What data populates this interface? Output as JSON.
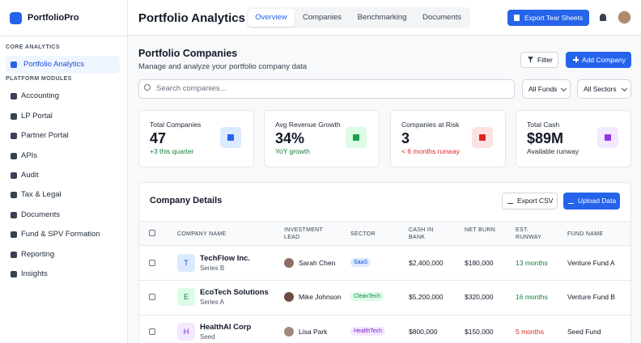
{
  "sidebar": {
    "brand": "PortfolioPro",
    "sections": [
      {
        "title": "CORE ANALYTICS",
        "items": [
          "Portfolio Analytics"
        ]
      },
      {
        "title": "PLATFORM MODULES",
        "items": [
          "Accounting",
          "LP Portal",
          "Partner Portal",
          "APIs",
          "Audit",
          "Tax & Legal",
          "Documents",
          "Fund & SPV Formation",
          "Reporting",
          "Insights"
        ]
      }
    ]
  },
  "header": {
    "title": "Portfolio Analytics",
    "tabs": [
      "Overview",
      "Companies",
      "Benchmarking",
      "Documents"
    ],
    "export_button": "Export Tear Sheets"
  },
  "main": {
    "title": "Portfolio Companies",
    "subtitle": "Manage and analyze your portfolio company data",
    "filter_button": "Filter",
    "add_button": "Add Company",
    "search_placeholder": "Search companies...",
    "fund_select": "All Funds",
    "sector_select": "All Sectors"
  },
  "stats": [
    {
      "label": "Total Companies",
      "value": "47",
      "note": "+3 this quarter"
    },
    {
      "label": "Avg Revenue Growth",
      "value": "34%",
      "note": "YoY growth"
    },
    {
      "label": "Companies at Risk",
      "value": "3",
      "note": "< 6 months runway"
    },
    {
      "label": "Total Cash",
      "value": "$89M",
      "note": "Available runway"
    }
  ],
  "table": {
    "title": "Company Details",
    "export_button": "Export CSV",
    "upload_button": "Upload Data",
    "columns": [
      "COMPANY NAME",
      "INVESTMENT LEAD",
      "SECTOR",
      "CASH IN BANK",
      "NET BURN",
      "EST. RUNWAY",
      "FUND NAME"
    ],
    "rows": [
      {
        "initial": "T",
        "name": "TechFlow Inc.",
        "stage": "Series B",
        "lead": "Sarah Chen",
        "sector": "SaaS",
        "cash": "$2,400,000",
        "burn": "$180,000",
        "runway": "13 months",
        "fund": "Venture Fund A"
      },
      {
        "initial": "E",
        "name": "EcoTech Solutions",
        "stage": "Series A",
        "lead": "Mike Johnson",
        "sector": "CleanTech",
        "cash": "$5,200,000",
        "burn": "$320,000",
        "runway": "16 months",
        "fund": "Venture Fund B"
      },
      {
        "initial": "H",
        "name": "HealthAI Corp",
        "stage": "Seed",
        "lead": "Lisa Park",
        "sector": "HealthTech",
        "cash": "$800,000",
        "burn": "$150,000",
        "runway": "5 months",
        "fund": "Seed Fund"
      }
    ]
  }
}
